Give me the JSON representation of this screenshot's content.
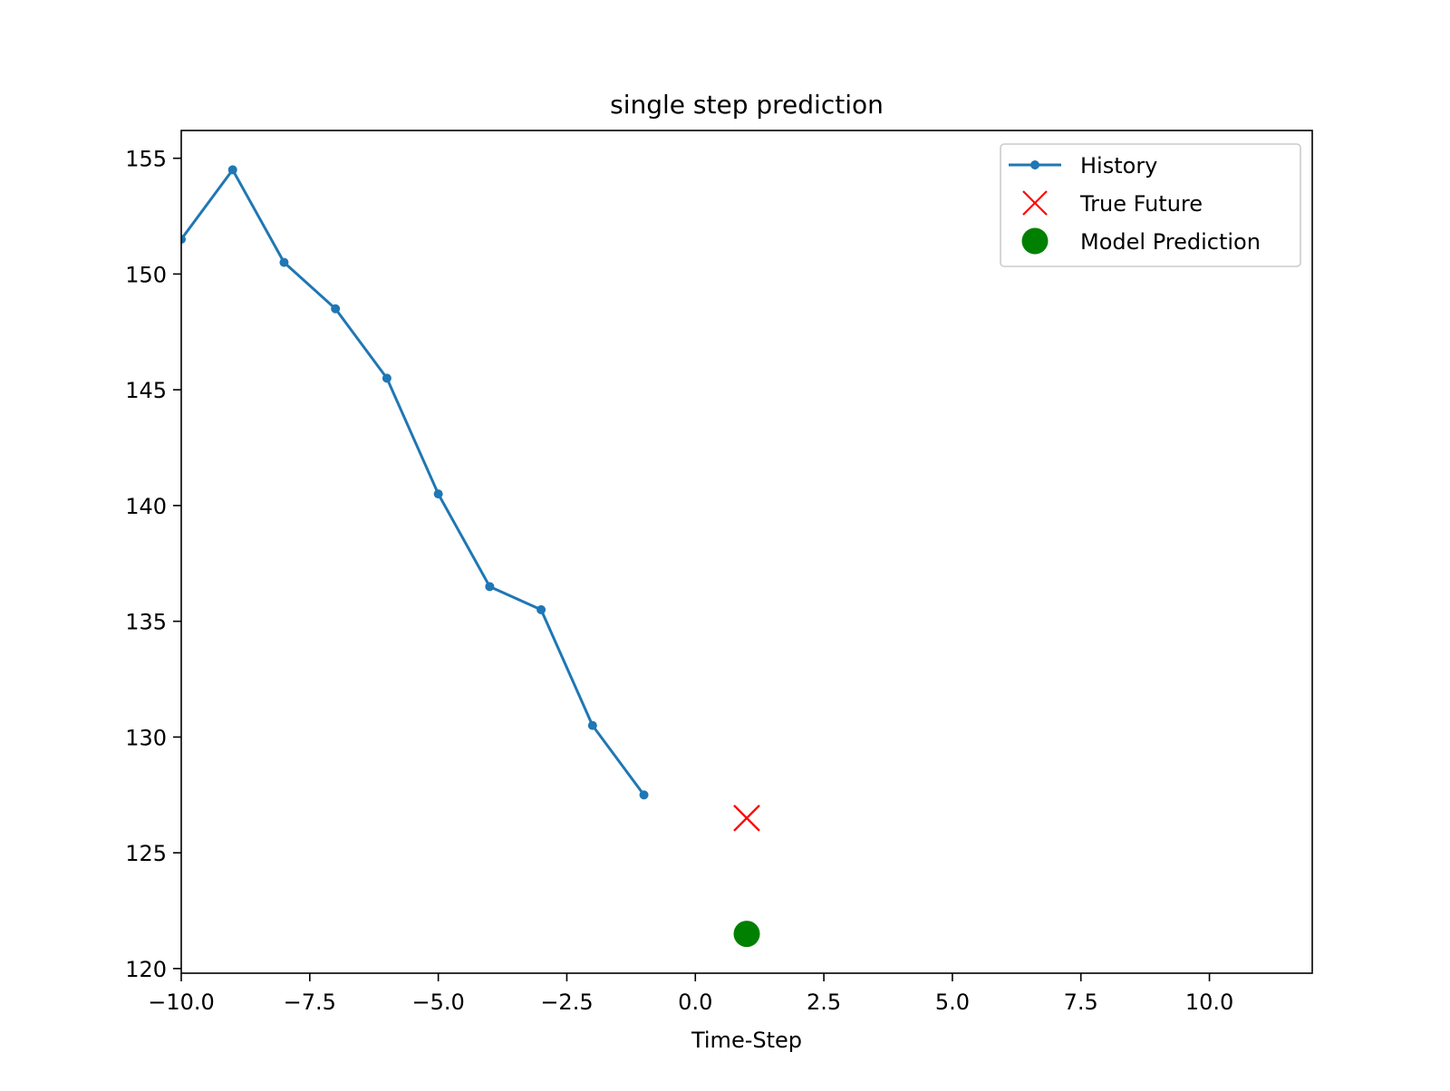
{
  "chart_data": {
    "type": "line",
    "title": "single step prediction",
    "xlabel": "Time-Step",
    "ylabel": "",
    "xlim": [
      -10.0,
      12.0
    ],
    "ylim": [
      119.8,
      156.2
    ],
    "xticks": [
      -10.0,
      -7.5,
      -5.0,
      -2.5,
      0.0,
      2.5,
      5.0,
      7.5,
      10.0
    ],
    "xtick_labels": [
      "−10.0",
      "−7.5",
      "−5.0",
      "−2.5",
      "0.0",
      "2.5",
      "5.0",
      "7.5",
      "10.0"
    ],
    "yticks": [
      120,
      125,
      130,
      135,
      140,
      145,
      150,
      155
    ],
    "ytick_labels": [
      "120",
      "125",
      "130",
      "135",
      "140",
      "145",
      "150",
      "155"
    ],
    "grid": false,
    "legend_position": "top-right",
    "series": [
      {
        "name": "History",
        "kind": "line-with-dots",
        "color": "#1f77b4",
        "x": [
          -10,
          -9,
          -8,
          -7,
          -6,
          -5,
          -4,
          -3,
          -2,
          -1
        ],
        "y": [
          151.5,
          154.5,
          150.5,
          148.5,
          145.5,
          140.5,
          136.5,
          135.5,
          130.5,
          127.5
        ]
      },
      {
        "name": "True Future",
        "kind": "x-marker",
        "color": "#ff0000",
        "x": [
          1
        ],
        "y": [
          126.5
        ]
      },
      {
        "name": "Model Prediction",
        "kind": "circle-marker",
        "color": "#008000",
        "x": [
          1
        ],
        "y": [
          121.5
        ]
      }
    ]
  }
}
